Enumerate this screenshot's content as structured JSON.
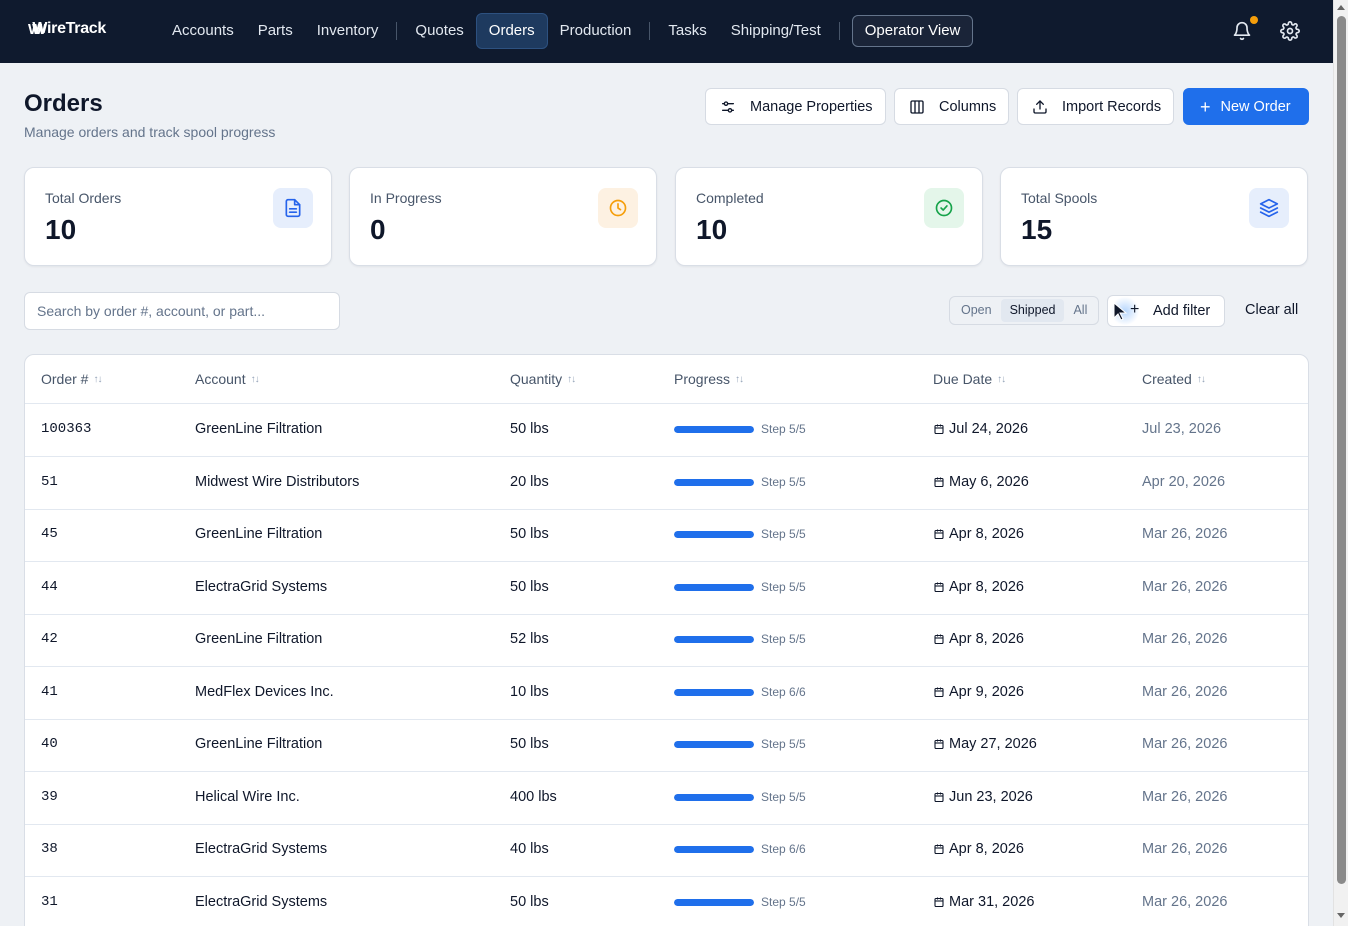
{
  "brand": {
    "name": "WireTrack",
    "mark": "W"
  },
  "nav": {
    "items": [
      {
        "label": "Accounts",
        "active": false
      },
      {
        "label": "Parts",
        "active": false
      },
      {
        "label": "Inventory",
        "active": false
      },
      {
        "sep": true
      },
      {
        "label": "Quotes",
        "active": false
      },
      {
        "label": "Orders",
        "active": true
      },
      {
        "label": "Production",
        "active": false
      },
      {
        "sep": true
      },
      {
        "label": "Tasks",
        "active": false
      },
      {
        "label": "Shipping/Test",
        "active": false
      },
      {
        "sep": true
      }
    ],
    "operator_view": "Operator View"
  },
  "header": {
    "title": "Orders",
    "subtitle": "Manage orders and track spool progress",
    "buttons": {
      "manage_properties": "Manage Properties",
      "columns": "Columns",
      "import_records": "Import Records",
      "new_order": "New Order"
    }
  },
  "stats": [
    {
      "label": "Total Orders",
      "value": "10",
      "icon": "document-icon",
      "icon_color": "#2563eb",
      "icon_bg": "#e6eefc"
    },
    {
      "label": "In Progress",
      "value": "0",
      "icon": "clock-icon",
      "icon_color": "#f59e0b",
      "icon_bg": "#fdf1e2"
    },
    {
      "label": "Completed",
      "value": "10",
      "icon": "check-circle-icon",
      "icon_color": "#16a34a",
      "icon_bg": "#e4f6ea"
    },
    {
      "label": "Total Spools",
      "value": "15",
      "icon": "layers-icon",
      "icon_color": "#2563eb",
      "icon_bg": "#e6eefc"
    }
  ],
  "search": {
    "placeholder": "Search by order #, account, or part..."
  },
  "status_filter": {
    "options": [
      "Open",
      "Shipped",
      "All"
    ],
    "selected": "Shipped"
  },
  "add_filter": "Add filter",
  "clear_all": "Clear all",
  "table": {
    "columns": [
      "Order #",
      "Account",
      "Quantity",
      "Progress",
      "Due Date",
      "Created"
    ],
    "rows": [
      {
        "order": "100363",
        "account": "GreenLine Filtration",
        "quantity": "50 lbs",
        "progress": 1.0,
        "step": "Step 5/5",
        "due": "Jul 24, 2026",
        "created": "Jul 23, 2026"
      },
      {
        "order": "51",
        "account": "Midwest Wire Distributors",
        "quantity": "20 lbs",
        "progress": 1.0,
        "step": "Step 5/5",
        "due": "May 6, 2026",
        "created": "Apr 20, 2026"
      },
      {
        "order": "45",
        "account": "GreenLine Filtration",
        "quantity": "50 lbs",
        "progress": 1.0,
        "step": "Step 5/5",
        "due": "Apr 8, 2026",
        "created": "Mar 26, 2026"
      },
      {
        "order": "44",
        "account": "ElectraGrid Systems",
        "quantity": "50 lbs",
        "progress": 1.0,
        "step": "Step 5/5",
        "due": "Apr 8, 2026",
        "created": "Mar 26, 2026"
      },
      {
        "order": "42",
        "account": "GreenLine Filtration",
        "quantity": "52 lbs",
        "progress": 1.0,
        "step": "Step 5/5",
        "due": "Apr 8, 2026",
        "created": "Mar 26, 2026"
      },
      {
        "order": "41",
        "account": "MedFlex Devices Inc.",
        "quantity": "10 lbs",
        "progress": 1.0,
        "step": "Step 6/6",
        "due": "Apr 9, 2026",
        "created": "Mar 26, 2026"
      },
      {
        "order": "40",
        "account": "GreenLine Filtration",
        "quantity": "50 lbs",
        "progress": 1.0,
        "step": "Step 5/5",
        "due": "May 27, 2026",
        "created": "Mar 26, 2026"
      },
      {
        "order": "39",
        "account": "Helical Wire Inc.",
        "quantity": "400 lbs",
        "progress": 1.0,
        "step": "Step 5/5",
        "due": "Jun 23, 2026",
        "created": "Mar 26, 2026"
      },
      {
        "order": "38",
        "account": "ElectraGrid Systems",
        "quantity": "40 lbs",
        "progress": 1.0,
        "step": "Step 6/6",
        "due": "Apr 8, 2026",
        "created": "Mar 26, 2026"
      },
      {
        "order": "31",
        "account": "ElectraGrid Systems",
        "quantity": "50 lbs",
        "progress": 1.0,
        "step": "Step 5/5",
        "due": "Mar 31, 2026",
        "created": "Mar 26, 2026"
      }
    ]
  },
  "colors": {
    "nav_bg": "#0f1a2e",
    "primary": "#1f6feb",
    "notification_dot": "#f59e0b"
  }
}
